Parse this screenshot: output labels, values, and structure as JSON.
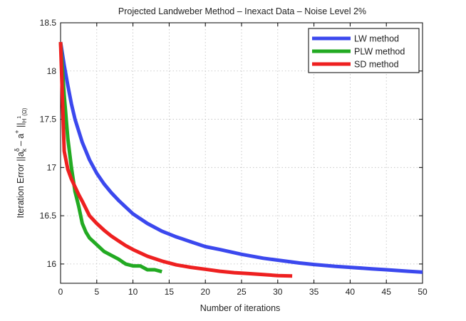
{
  "chart_data": {
    "type": "line",
    "title": "Projected Landweber Method – Inexact Data – Noise Level 2%",
    "xlabel": "Number of iterations",
    "ylabel": "Iteration Error   ||aδk – a+||H1(Ω)",
    "ylabel_parts": {
      "prefix": "Iteration Error   ||a",
      "sup1": "δ",
      "sub1": "k",
      "mid": " – a",
      "sup2": "+",
      "mid2": " ||",
      "sub2": "H",
      "sup3": "1",
      "sub3": "(Ω)"
    },
    "xlim": [
      0,
      50
    ],
    "ylim": [
      15.8,
      18.5
    ],
    "xticks": [
      0,
      5,
      10,
      15,
      20,
      25,
      30,
      35,
      40,
      45,
      50
    ],
    "yticks": [
      16,
      16.5,
      17,
      17.5,
      18,
      18.5
    ],
    "grid": true,
    "legend_position": "top-right",
    "series": [
      {
        "name": "LW method",
        "color": "#3b48ee",
        "x": [
          0,
          0.5,
          1,
          1.5,
          2,
          3,
          4,
          5,
          6,
          7,
          8,
          9,
          10,
          12,
          14,
          16,
          18,
          20,
          22,
          25,
          28,
          30,
          33,
          35,
          38,
          40,
          43,
          45,
          48,
          50
        ],
        "y": [
          18.3,
          18.06,
          17.85,
          17.66,
          17.5,
          17.26,
          17.08,
          16.94,
          16.83,
          16.74,
          16.66,
          16.59,
          16.52,
          16.42,
          16.34,
          16.28,
          16.23,
          16.18,
          16.15,
          16.1,
          16.06,
          16.04,
          16.01,
          15.995,
          15.975,
          15.965,
          15.95,
          15.94,
          15.925,
          15.915
        ]
      },
      {
        "name": "PLW method",
        "color": "#22aa22",
        "x": [
          0,
          0.5,
          1,
          1.5,
          2,
          2.5,
          3,
          3.5,
          4,
          5,
          6,
          7,
          8,
          9,
          10,
          11,
          12,
          13,
          14
        ],
        "y": [
          18.3,
          17.75,
          17.3,
          17.0,
          16.75,
          16.6,
          16.42,
          16.33,
          16.27,
          16.2,
          16.13,
          16.09,
          16.05,
          16.0,
          15.98,
          15.98,
          15.94,
          15.94,
          15.92
        ]
      },
      {
        "name": "SD method",
        "color": "#ee2020",
        "x": [
          0,
          0.5,
          1,
          1.5,
          2,
          2.5,
          3,
          4,
          5,
          6,
          7,
          8,
          9,
          10,
          12,
          14,
          16,
          18,
          20,
          22,
          24,
          26,
          28,
          30,
          32
        ],
        "y": [
          18.3,
          17.17,
          16.98,
          16.88,
          16.8,
          16.72,
          16.65,
          16.5,
          16.42,
          16.35,
          16.29,
          16.24,
          16.19,
          16.15,
          16.08,
          16.03,
          15.99,
          15.965,
          15.945,
          15.925,
          15.91,
          15.9,
          15.89,
          15.88,
          15.875
        ]
      }
    ]
  }
}
